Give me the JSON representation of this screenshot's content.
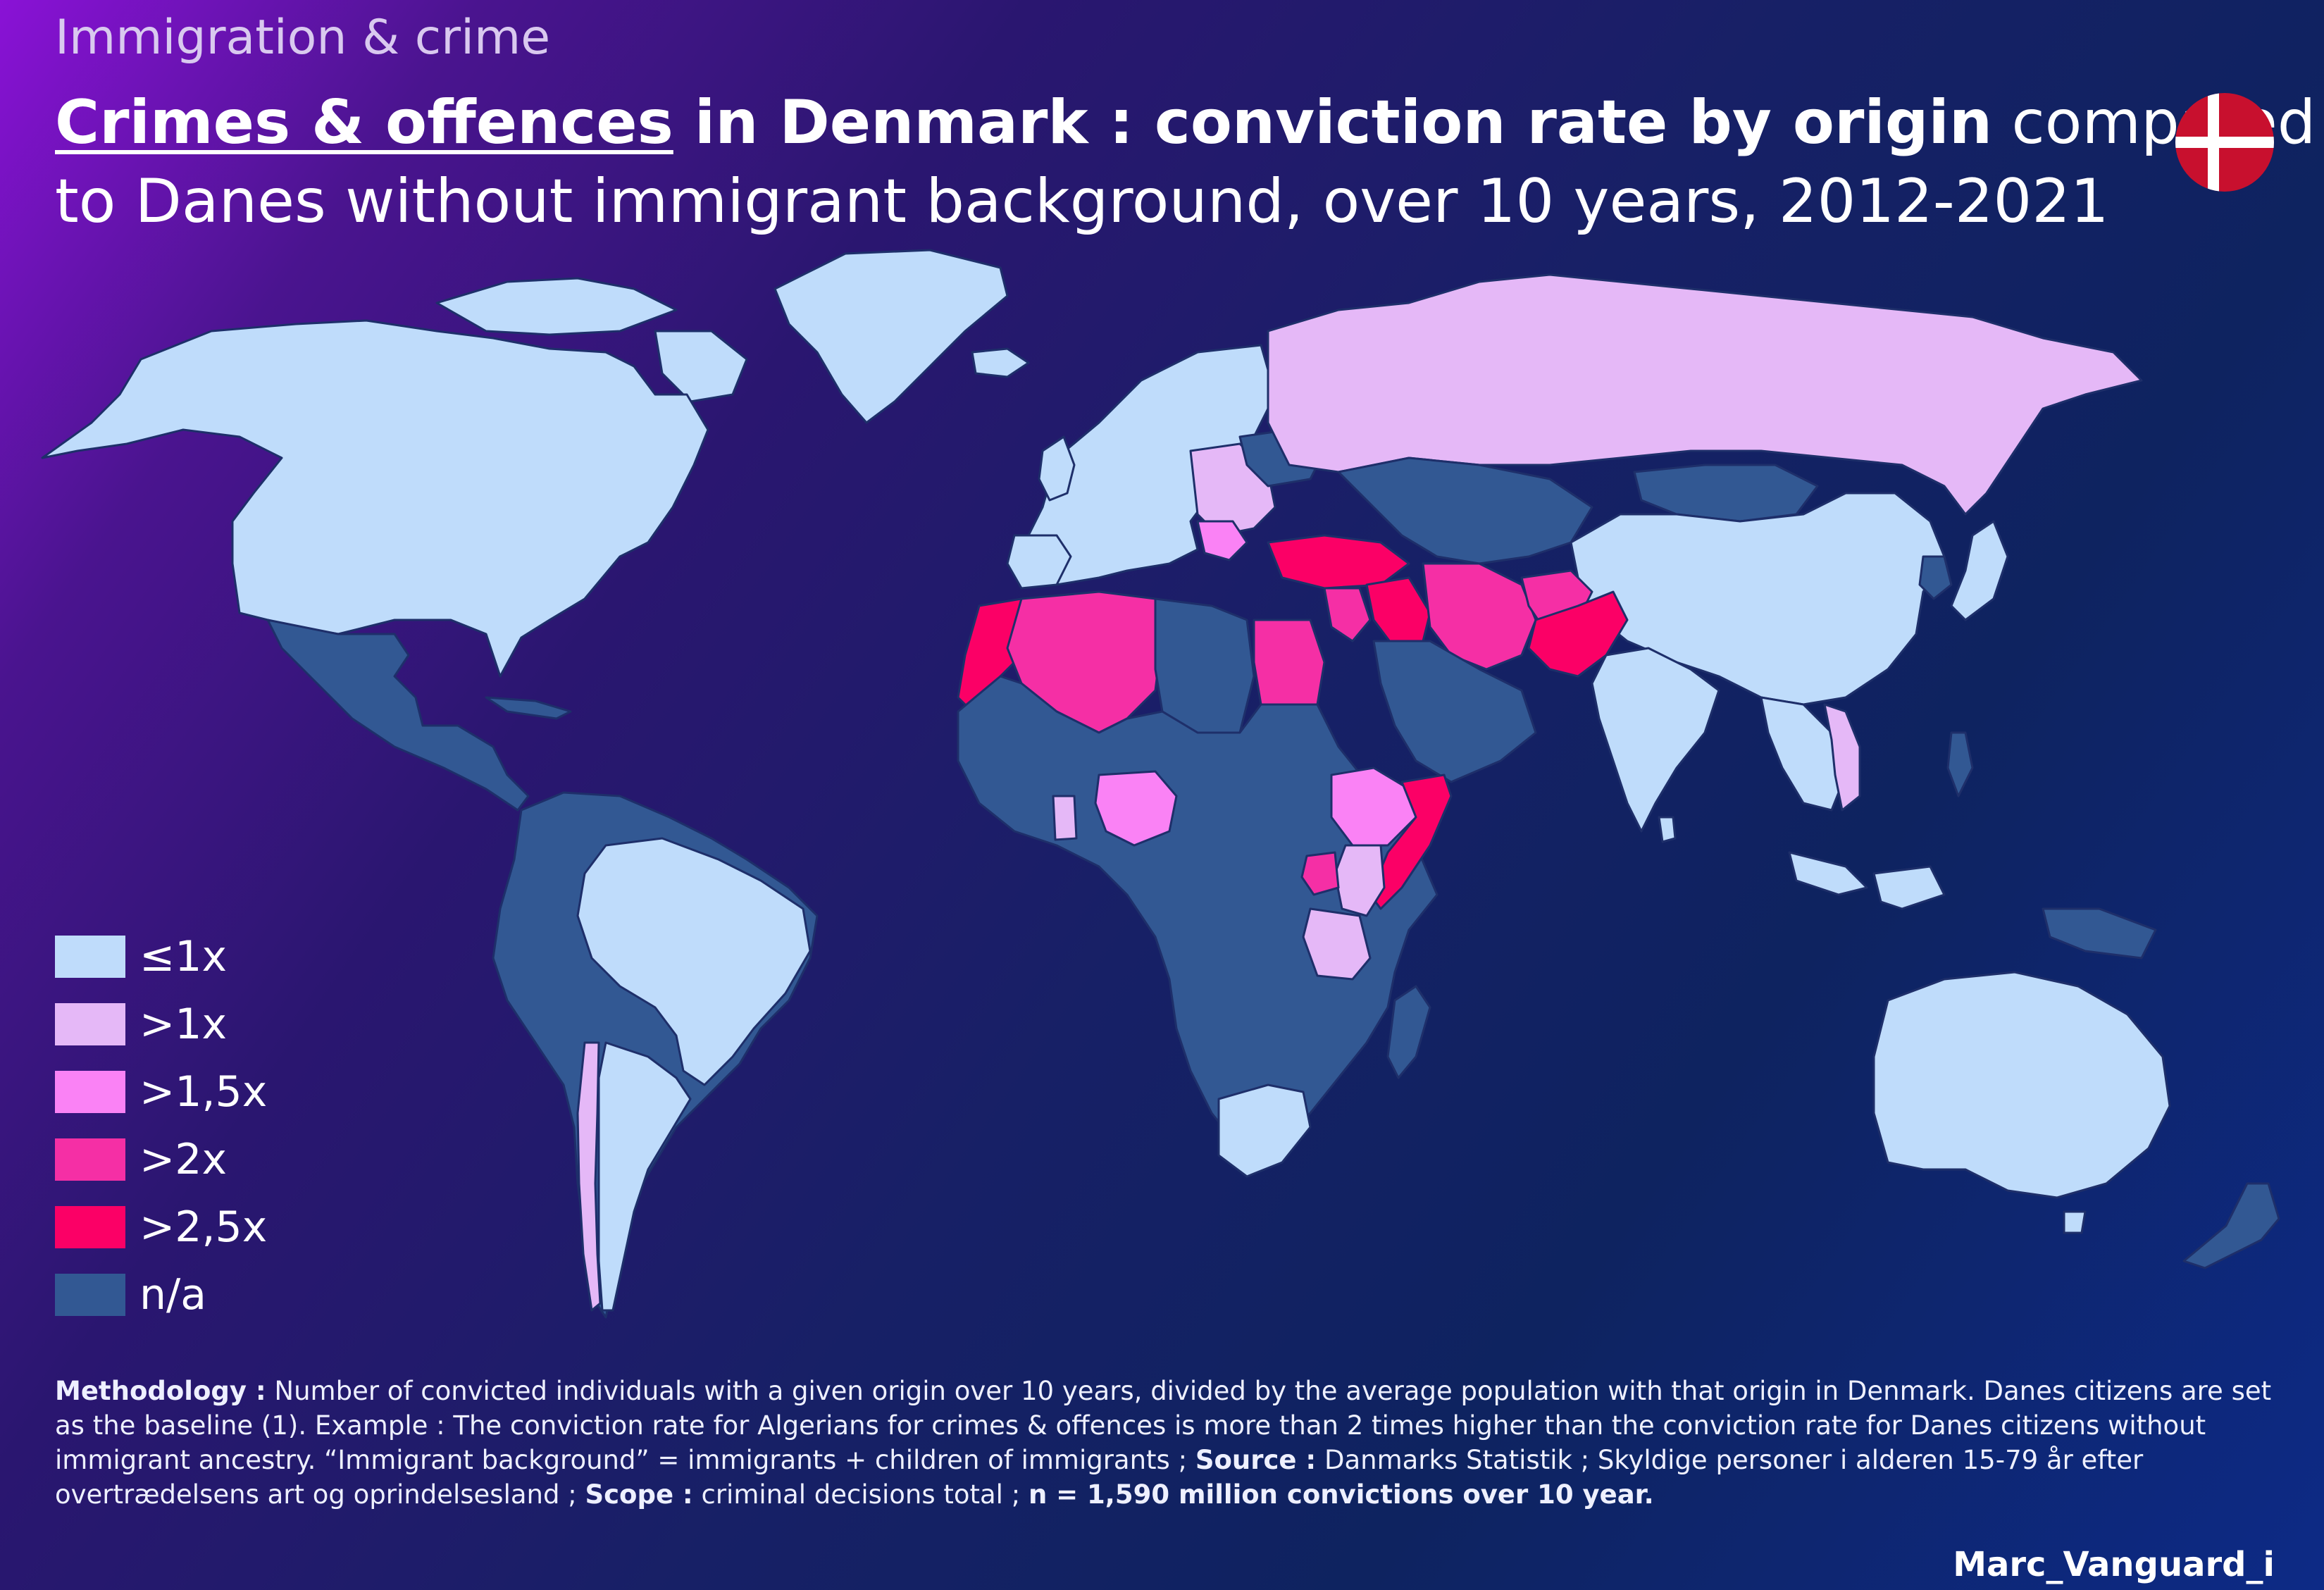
{
  "header": {
    "kicker": "Immigration & crime",
    "title_underlined": "Crimes & offences",
    "title_bold_rest": " in Denmark : conviction rate by origin",
    "title_normal_end": " compared",
    "title_line2": "to Danes without immigrant background, over 10 years, 2012-2021"
  },
  "flag": {
    "icon": "denmark-flag-icon",
    "red": "#c8102e",
    "white": "#ffffff"
  },
  "colors": {
    "le1x": "#bfdcfb",
    "gt1x": "#e5b8f7",
    "gt1_5x": "#fa82f5",
    "gt2x": "#f52fa5",
    "gt2_5x": "#fb0066",
    "na": "#325893",
    "border": "#1e2f6a"
  },
  "legend": [
    {
      "label": "≤1x",
      "color": "#bfdcfb"
    },
    {
      "label": ">1x",
      "color": "#e5b8f7"
    },
    {
      "label": ">1,5x",
      "color": "#fa82f5"
    },
    {
      "label": ">2x",
      "color": "#f52fa5"
    },
    {
      "label": ">2,5x",
      "color": "#fb0066"
    },
    {
      "label": "n/a",
      "color": "#325893"
    }
  ],
  "methodology": {
    "label_methodology": "Methodology :",
    "text_methodology": " Number of convicted individuals with a given origin over 10 years, divided by the average population with that origin in Denmark. Danes citizens are set as the baseline (1). Example : The conviction rate for Algerians for crimes & offences is more than 2 times higher than the conviction rate for Danes citizens without immigrant ancestry. “Immigrant background”  = immigrants + children of immigrants ; ",
    "label_source": "Source :",
    "text_source": " Danmarks Statistik ; Skyldige personer i alderen 15-79 år efter overtrædelsens art og oprindelsesland ; ",
    "label_scope": "Scope :",
    "text_scope": " criminal decisions total ; ",
    "n_statement": "n = 1,590 million convictions over 10 year."
  },
  "credit": "Marc_Vanguard_i"
}
